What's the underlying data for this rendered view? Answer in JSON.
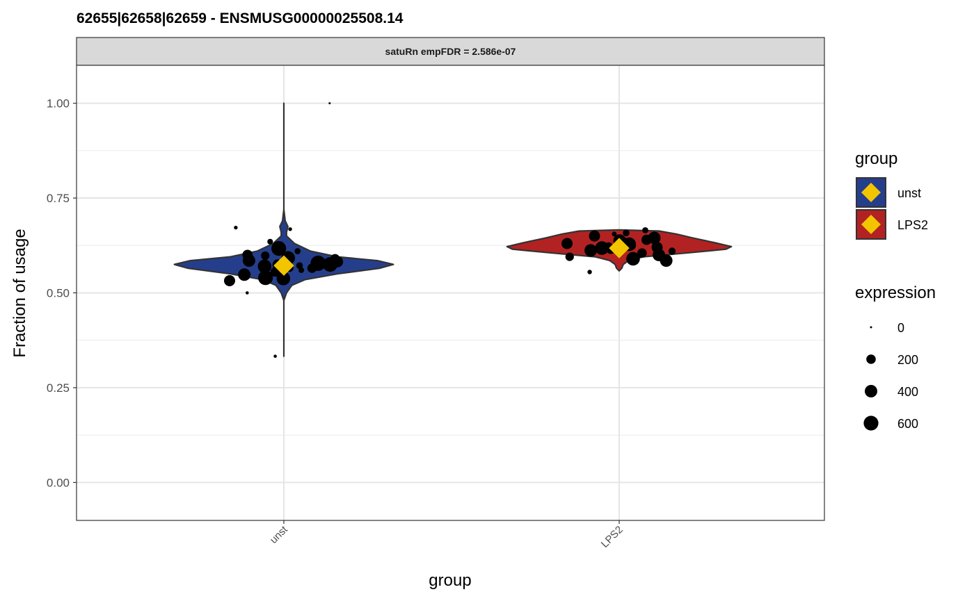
{
  "chart_data": {
    "type": "violin",
    "title": "62655|62658|62659  -  ENSMUSG00000025508.14",
    "facet_label": "satuRn empFDR = 2.586e-07",
    "xlabel": "group",
    "ylabel": "Fraction of usage",
    "ylim": [
      -0.1,
      1.1
    ],
    "yticks": [
      0.0,
      0.25,
      0.5,
      0.75,
      1.0
    ],
    "ytick_labels": [
      "0.00",
      "0.25",
      "0.50",
      "0.75",
      "1.00"
    ],
    "categories": [
      "unst",
      "LPS2"
    ],
    "grid": true,
    "legend_position": "right",
    "group_legend": {
      "title": "group",
      "entries": [
        {
          "label": "unst",
          "fill": "#253E8C"
        },
        {
          "label": "LPS2",
          "fill": "#B22222"
        }
      ],
      "marker_color": "#F2C500"
    },
    "size_legend": {
      "title": "expression",
      "entries": [
        {
          "label": "0",
          "value": 0
        },
        {
          "label": "200",
          "value": 200
        },
        {
          "label": "400",
          "value": 400
        },
        {
          "label": "600",
          "value": 600
        }
      ]
    },
    "violins": [
      {
        "group": "unst",
        "fill": "#253E8C",
        "mean": 0.572,
        "profile": [
          [
            0.333,
            0.0
          ],
          [
            0.4,
            0.0
          ],
          [
            0.48,
            0.0
          ],
          [
            0.5,
            0.02
          ],
          [
            0.52,
            0.06
          ],
          [
            0.535,
            0.16
          ],
          [
            0.55,
            0.4
          ],
          [
            0.565,
            0.72
          ],
          [
            0.575,
            0.82
          ],
          [
            0.585,
            0.7
          ],
          [
            0.595,
            0.4
          ],
          [
            0.61,
            0.2
          ],
          [
            0.63,
            0.08
          ],
          [
            0.65,
            0.02
          ],
          [
            0.66,
            0.02
          ],
          [
            0.675,
            0.03
          ],
          [
            0.69,
            0.01
          ],
          [
            0.72,
            0.0
          ],
          [
            0.8,
            0.0
          ],
          [
            0.9,
            0.0
          ],
          [
            1.0,
            0.0
          ]
        ],
        "points": [
          {
            "y": 1.0,
            "expr": 0
          },
          {
            "y": 0.672,
            "expr": 10
          },
          {
            "y": 0.668,
            "expr": 10
          },
          {
            "y": 0.635,
            "expr": 50
          },
          {
            "y": 0.617,
            "expr": 600
          },
          {
            "y": 0.61,
            "expr": 60
          },
          {
            "y": 0.6,
            "expr": 250
          },
          {
            "y": 0.598,
            "expr": 150
          },
          {
            "y": 0.592,
            "expr": 500
          },
          {
            "y": 0.59,
            "expr": 200
          },
          {
            "y": 0.588,
            "expr": 120
          },
          {
            "y": 0.585,
            "expr": 400
          },
          {
            "y": 0.582,
            "expr": 300
          },
          {
            "y": 0.578,
            "expr": 650
          },
          {
            "y": 0.576,
            "expr": 200
          },
          {
            "y": 0.575,
            "expr": 600
          },
          {
            "y": 0.574,
            "expr": 150
          },
          {
            "y": 0.572,
            "expr": 80
          },
          {
            "y": 0.57,
            "expr": 500
          },
          {
            "y": 0.565,
            "expr": 200
          },
          {
            "y": 0.565,
            "expr": 100
          },
          {
            "y": 0.56,
            "expr": 50
          },
          {
            "y": 0.555,
            "expr": 200
          },
          {
            "y": 0.548,
            "expr": 400
          },
          {
            "y": 0.54,
            "expr": 600
          },
          {
            "y": 0.538,
            "expr": 500
          },
          {
            "y": 0.532,
            "expr": 300
          },
          {
            "y": 0.5,
            "expr": 5
          },
          {
            "y": 0.333,
            "expr": 5
          }
        ]
      },
      {
        "group": "LPS2",
        "fill": "#B22222",
        "mean": 0.618,
        "profile": [
          [
            0.558,
            0.0
          ],
          [
            0.565,
            0.02
          ],
          [
            0.575,
            0.03
          ],
          [
            0.585,
            0.07
          ],
          [
            0.595,
            0.18
          ],
          [
            0.605,
            0.5
          ],
          [
            0.615,
            0.8
          ],
          [
            0.622,
            0.84
          ],
          [
            0.632,
            0.72
          ],
          [
            0.645,
            0.55
          ],
          [
            0.655,
            0.43
          ],
          [
            0.663,
            0.3
          ],
          [
            0.666,
            0.0
          ]
        ],
        "points": [
          {
            "y": 0.665,
            "expr": 60
          },
          {
            "y": 0.658,
            "expr": 80
          },
          {
            "y": 0.655,
            "expr": 30
          },
          {
            "y": 0.65,
            "expr": 300
          },
          {
            "y": 0.645,
            "expr": 400
          },
          {
            "y": 0.64,
            "expr": 250
          },
          {
            "y": 0.638,
            "expr": 400
          },
          {
            "y": 0.635,
            "expr": 300
          },
          {
            "y": 0.632,
            "expr": 200
          },
          {
            "y": 0.63,
            "expr": 300
          },
          {
            "y": 0.628,
            "expr": 500
          },
          {
            "y": 0.625,
            "expr": 200
          },
          {
            "y": 0.622,
            "expr": 150
          },
          {
            "y": 0.62,
            "expr": 300
          },
          {
            "y": 0.618,
            "expr": 500
          },
          {
            "y": 0.615,
            "expr": 200
          },
          {
            "y": 0.612,
            "expr": 400
          },
          {
            "y": 0.61,
            "expr": 100
          },
          {
            "y": 0.605,
            "expr": 200
          },
          {
            "y": 0.6,
            "expr": 400
          },
          {
            "y": 0.598,
            "expr": 80
          },
          {
            "y": 0.595,
            "expr": 150
          },
          {
            "y": 0.59,
            "expr": 500
          },
          {
            "y": 0.585,
            "expr": 400
          },
          {
            "y": 0.555,
            "expr": 20
          }
        ]
      }
    ]
  }
}
